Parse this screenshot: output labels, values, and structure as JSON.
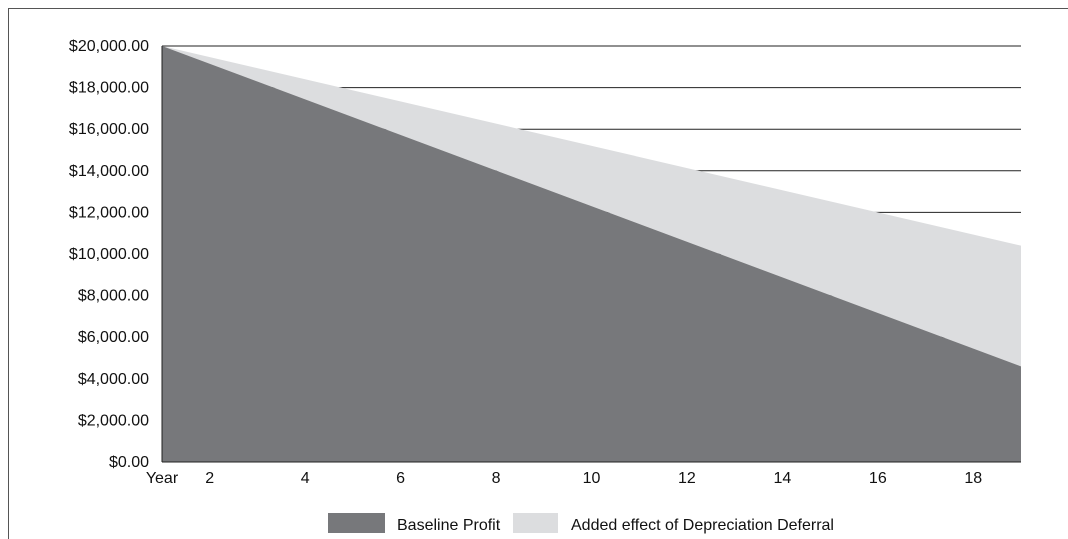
{
  "chart_data": {
    "type": "area",
    "stacked": true,
    "x": [
      1,
      19
    ],
    "x_ticks": [
      "Year",
      "2",
      "4",
      "6",
      "8",
      "10",
      "12",
      "14",
      "16",
      "18"
    ],
    "x_tick_values": [
      1,
      2,
      4,
      6,
      8,
      10,
      12,
      14,
      16,
      18
    ],
    "ylim": [
      0,
      20000
    ],
    "y_ticks": [
      "$0.00",
      "$2,000.00",
      "$4,000.00",
      "$6,000.00",
      "$8,000.00",
      "$10,000.00",
      "$12,000.00",
      "$14,000.00",
      "$16,000.00",
      "$18,000.00",
      "$20,000.00"
    ],
    "y_tick_values": [
      0,
      2000,
      4000,
      6000,
      8000,
      10000,
      12000,
      14000,
      16000,
      18000,
      20000
    ],
    "grid": "horizontal",
    "legend_position": "bottom",
    "series": [
      {
        "name": "Baseline Profit",
        "values": [
          20000,
          4600
        ],
        "color": "#77787b"
      },
      {
        "name": "Added effect of Depreciation Deferral",
        "values": [
          0,
          5800
        ],
        "color": "#dcdddf"
      }
    ]
  },
  "legend": {
    "items": [
      {
        "label": "Baseline Profit",
        "color": "#77787b"
      },
      {
        "label": "Added effect of Depreciation Deferral",
        "color": "#dcdddf"
      }
    ]
  }
}
